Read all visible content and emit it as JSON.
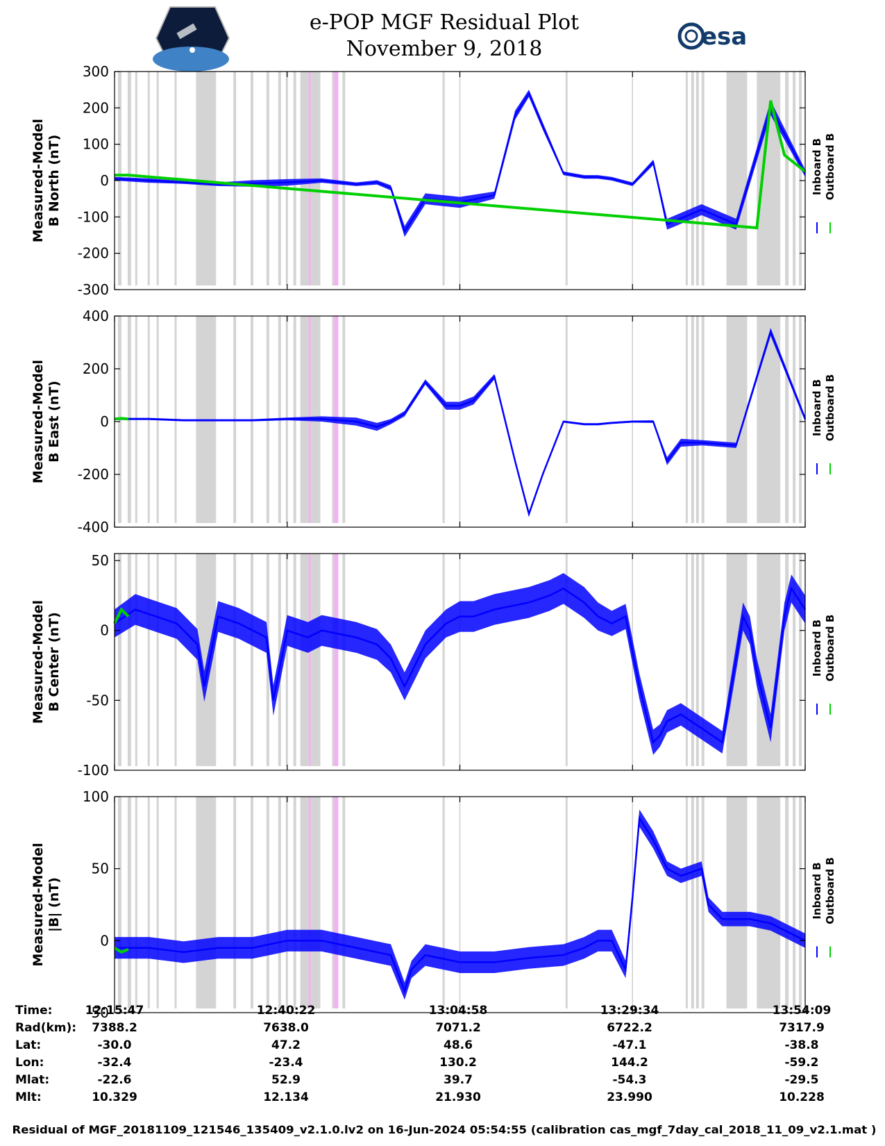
{
  "header": {
    "title_line1": "e-POP MGF Residual Plot",
    "title_line2": "November 9, 2018",
    "left_logo": "cassiope-mission-logo",
    "right_logo_text": "esa"
  },
  "colors": {
    "inboard": "#0000ff",
    "outboard": "#00d000",
    "gap_gray": "#d4d4d4",
    "gap_magenta": "#f2b2f2",
    "grid": "#cfcfcf"
  },
  "chart_data": [
    {
      "type": "line",
      "ylabel_line1": "Measured-Model",
      "ylabel_line2": "B North (nT)",
      "ylim": [
        -300,
        300
      ],
      "yticks": [
        300,
        200,
        100,
        0,
        -100,
        -200,
        -300
      ],
      "legend": [
        "Inboard B",
        "Outboard B"
      ],
      "series": [
        {
          "name": "Inboard B",
          "x": [
            0,
            5,
            10,
            15,
            20,
            25,
            30,
            35,
            38,
            40,
            42,
            45,
            50,
            55,
            58,
            60,
            62,
            65,
            68,
            70,
            72,
            75,
            78,
            80,
            85,
            90,
            95,
            100
          ],
          "y": [
            5,
            0,
            -5,
            -10,
            -8,
            -5,
            0,
            -10,
            -5,
            -20,
            -140,
            -50,
            -60,
            -40,
            180,
            240,
            150,
            20,
            10,
            10,
            5,
            -10,
            50,
            -120,
            -80,
            -120,
            200,
            20
          ]
        },
        {
          "name": "Outboard B",
          "x": [
            0,
            2,
            93,
            95,
            97,
            100
          ],
          "y": [
            15,
            15,
            -130,
            220,
            70,
            25
          ]
        }
      ],
      "envelope": [
        10,
        12,
        8,
        10,
        18,
        18,
        12,
        10,
        12,
        14,
        30,
        30,
        30,
        20,
        25,
        20,
        20,
        10,
        10,
        10,
        10,
        10,
        15,
        30,
        30,
        30,
        40,
        20
      ]
    },
    {
      "type": "line",
      "ylabel_line1": "Measured-Model",
      "ylabel_line2": "B East (nT)",
      "ylim": [
        -400,
        400
      ],
      "yticks": [
        400,
        200,
        0,
        -200,
        -400
      ],
      "legend": [
        "Inboard B",
        "Outboard B"
      ],
      "series": [
        {
          "name": "Inboard B",
          "x": [
            0,
            5,
            10,
            15,
            20,
            25,
            30,
            35,
            38,
            40,
            42,
            45,
            48,
            50,
            52,
            55,
            58,
            60,
            62,
            65,
            68,
            70,
            72,
            75,
            78,
            80,
            82,
            85,
            90,
            95,
            100
          ],
          "y": [
            10,
            10,
            5,
            5,
            5,
            10,
            10,
            0,
            -20,
            0,
            30,
            150,
            60,
            60,
            80,
            170,
            -150,
            -350,
            -200,
            0,
            -10,
            -10,
            -5,
            0,
            0,
            -150,
            -80,
            -80,
            -90,
            340,
            10
          ]
        },
        {
          "name": "Outboard B",
          "x": [
            0,
            1,
            2
          ],
          "y": [
            10,
            12,
            10
          ]
        }
      ],
      "envelope": [
        8,
        8,
        8,
        8,
        8,
        10,
        20,
        30,
        30,
        20,
        20,
        20,
        30,
        30,
        30,
        20,
        20,
        20,
        15,
        8,
        8,
        8,
        8,
        8,
        10,
        30,
        30,
        20,
        20,
        30,
        20
      ]
    },
    {
      "type": "line",
      "ylabel_line1": "Measured-Model",
      "ylabel_line2": "B Center (nT)",
      "ylim": [
        -100,
        55
      ],
      "yticks": [
        50,
        0,
        -50,
        -100
      ],
      "legend": [
        "Inboard B",
        "Outboard B"
      ],
      "series": [
        {
          "name": "Inboard B",
          "x": [
            0,
            3,
            6,
            9,
            12,
            13,
            15,
            18,
            22,
            23,
            25,
            28,
            30,
            35,
            38,
            40,
            42,
            45,
            48,
            50,
            52,
            55,
            60,
            63,
            65,
            68,
            70,
            72,
            74,
            76,
            78,
            79,
            80,
            82,
            85,
            88,
            91,
            92,
            93,
            95,
            97,
            98,
            100
          ],
          "y": [
            5,
            15,
            10,
            5,
            -10,
            -40,
            10,
            5,
            -5,
            -50,
            0,
            -5,
            0,
            -5,
            -10,
            -20,
            -40,
            -10,
            5,
            10,
            10,
            15,
            20,
            25,
            30,
            20,
            10,
            5,
            10,
            -40,
            -80,
            -75,
            -65,
            -60,
            -70,
            -80,
            10,
            0,
            -30,
            -70,
            10,
            30,
            15
          ]
        },
        {
          "name": "Outboard B",
          "x": [
            0,
            1,
            2
          ],
          "y": [
            5,
            15,
            10
          ]
        }
      ],
      "envelope": [
        20,
        22,
        22,
        22,
        22,
        22,
        22,
        22,
        22,
        22,
        22,
        22,
        22,
        22,
        22,
        20,
        20,
        20,
        20,
        22,
        22,
        22,
        22,
        22,
        22,
        22,
        20,
        18,
        18,
        18,
        18,
        16,
        16,
        16,
        16,
        16,
        20,
        20,
        20,
        20,
        20,
        20,
        20
      ]
    },
    {
      "type": "line",
      "ylabel_line1": "Measured-Model",
      "ylabel_line2": "|B| (nT)",
      "ylim": [
        -50,
        100
      ],
      "yticks": [
        100,
        50,
        0,
        -50
      ],
      "legend": [
        "Inboard B",
        "Outboard B"
      ],
      "series": [
        {
          "name": "Inboard B",
          "x": [
            0,
            5,
            10,
            15,
            20,
            25,
            30,
            35,
            40,
            42,
            43,
            45,
            50,
            55,
            60,
            65,
            68,
            70,
            72,
            74,
            75,
            76,
            78,
            80,
            82,
            85,
            86,
            88,
            90,
            92,
            95,
            100
          ],
          "y": [
            -5,
            -5,
            -8,
            -5,
            -5,
            0,
            0,
            -5,
            -10,
            -35,
            -20,
            -10,
            -15,
            -15,
            -12,
            -10,
            -5,
            0,
            0,
            -20,
            30,
            85,
            70,
            50,
            45,
            50,
            25,
            15,
            15,
            15,
            12,
            0
          ]
        },
        {
          "name": "Outboard B",
          "x": [
            0,
            1,
            2
          ],
          "y": [
            -5,
            -8,
            -6
          ]
        }
      ],
      "envelope": [
        15,
        15,
        15,
        15,
        15,
        15,
        15,
        15,
        15,
        12,
        12,
        15,
        15,
        15,
        15,
        15,
        15,
        15,
        15,
        12,
        12,
        12,
        12,
        10,
        10,
        10,
        10,
        10,
        10,
        10,
        10,
        10
      ]
    }
  ],
  "x_axis_ticks_pct": [
    0,
    25,
    50,
    75,
    100
  ],
  "gap_bands_gray_pct": [
    [
      0.5,
      1.0
    ],
    [
      1.9,
      2.4
    ],
    [
      3.0,
      3.3
    ],
    [
      4.8,
      5.1
    ],
    [
      6.1,
      6.4
    ],
    [
      8.7,
      9.0
    ],
    [
      11.8,
      14.7
    ],
    [
      17.2,
      17.6
    ],
    [
      19.7,
      20.1
    ],
    [
      22.0,
      22.4
    ],
    [
      23.7,
      24.1
    ],
    [
      24.8,
      25.1
    ],
    [
      25.9,
      26.3
    ],
    [
      26.9,
      28.1
    ],
    [
      28.4,
      29.8
    ],
    [
      31.5,
      31.8
    ],
    [
      33.0,
      33.4
    ],
    [
      47.5,
      47.8
    ],
    [
      65.3,
      65.6
    ],
    [
      82.7,
      83.0
    ],
    [
      83.5,
      83.9
    ],
    [
      84.2,
      84.6
    ],
    [
      85.0,
      85.4
    ],
    [
      88.6,
      91.6
    ],
    [
      93.0,
      96.4
    ],
    [
      97.1,
      97.6
    ],
    [
      98.2,
      98.6
    ],
    [
      99.1,
      99.5
    ]
  ],
  "gap_bands_magenta_pct": [
    [
      28.1,
      28.4
    ],
    [
      31.8,
      32.4
    ]
  ],
  "info_table": {
    "labels": [
      "Time:",
      "Rad(km):",
      "Lat:",
      "Lon:",
      "Mlat:",
      "Mlt:"
    ],
    "columns": [
      [
        "12:15:47",
        "7388.2",
        "-30.0",
        "-32.4",
        "-22.6",
        "10.329"
      ],
      [
        "12:40:22",
        "7638.0",
        "47.2",
        "-23.4",
        "52.9",
        "12.134"
      ],
      [
        "13:04:58",
        "7071.2",
        "48.6",
        "130.2",
        "39.7",
        "21.930"
      ],
      [
        "13:29:34",
        "6722.2",
        "-47.1",
        "144.2",
        "-54.3",
        "23.990"
      ],
      [
        "13:54:09",
        "7317.9",
        "-38.8",
        "-59.2",
        "-29.5",
        "10.228"
      ]
    ]
  },
  "footer": "Residual of MGF_20181109_121546_135409_v2.1.0.lv2 on 16-Jun-2024 05:54:55 (calibration cas_mgf_7day_cal_2018_11_09_v2.1.mat )"
}
